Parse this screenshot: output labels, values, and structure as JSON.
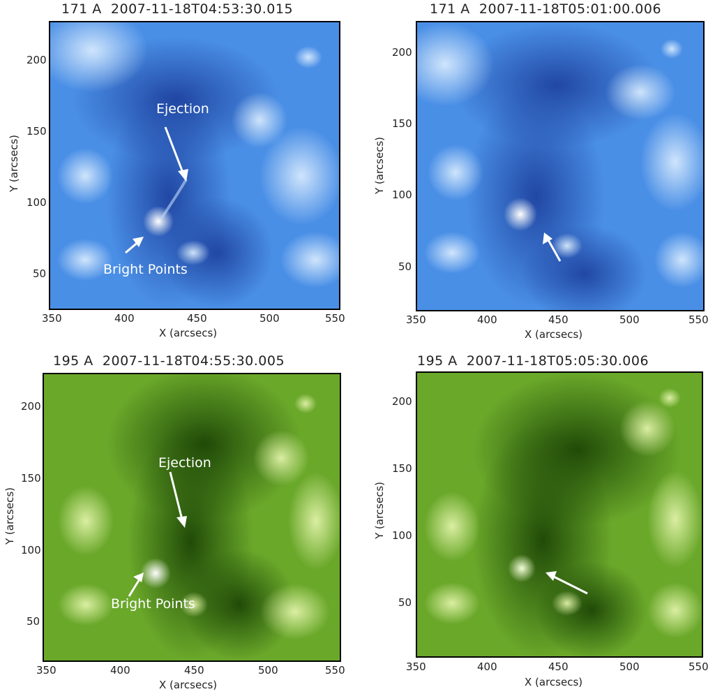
{
  "panels": [
    {
      "title_wavelength": "171 A",
      "title_time": "2007-11-18T04:53:30.015",
      "x_label": "X (arcsecs)",
      "y_label": "Y (arcsecs)",
      "x_ticks": [
        "350",
        "400",
        "450",
        "500",
        "550"
      ],
      "y_ticks": [
        "200",
        "150",
        "100",
        "50"
      ],
      "annotations": [
        "Ejection",
        "Bright Points"
      ],
      "palette": "blue"
    },
    {
      "title_wavelength": "171 A",
      "title_time": "2007-11-18T05:01:00.006",
      "x_label": "X (arcsecs)",
      "y_label": "Y (arcsecs)",
      "x_ticks": [
        "350",
        "400",
        "450",
        "500",
        "550"
      ],
      "y_ticks": [
        "200",
        "150",
        "100",
        "50"
      ],
      "annotations": [],
      "palette": "blue"
    },
    {
      "title_wavelength": "195 A",
      "title_time": "2007-11-18T04:55:30.005",
      "x_label": "X (arcsecs)",
      "y_label": "Y (arcsecs)",
      "x_ticks": [
        "350",
        "400",
        "450",
        "500",
        "550"
      ],
      "y_ticks": [
        "200",
        "150",
        "100",
        "50"
      ],
      "annotations": [
        "Ejection",
        "Bright Points"
      ],
      "palette": "green"
    },
    {
      "title_wavelength": "195 A",
      "title_time": "2007-11-18T05:05:30.006",
      "x_label": "X (arcsecs)",
      "y_label": "Y (arcsecs)",
      "x_ticks": [
        "350",
        "400",
        "450",
        "500",
        "550"
      ],
      "y_ticks": [
        "200",
        "150",
        "100",
        "50"
      ],
      "annotations": [],
      "palette": "green"
    }
  ],
  "colors": {
    "blue_dark": "#1f4fb0",
    "blue_mid": "#3f86e0",
    "blue_light": "#cfe3fb",
    "green_dark": "#1f4d08",
    "green_mid": "#5a9a1a",
    "green_light": "#d8ef9c",
    "annotation": "#ffffff"
  }
}
